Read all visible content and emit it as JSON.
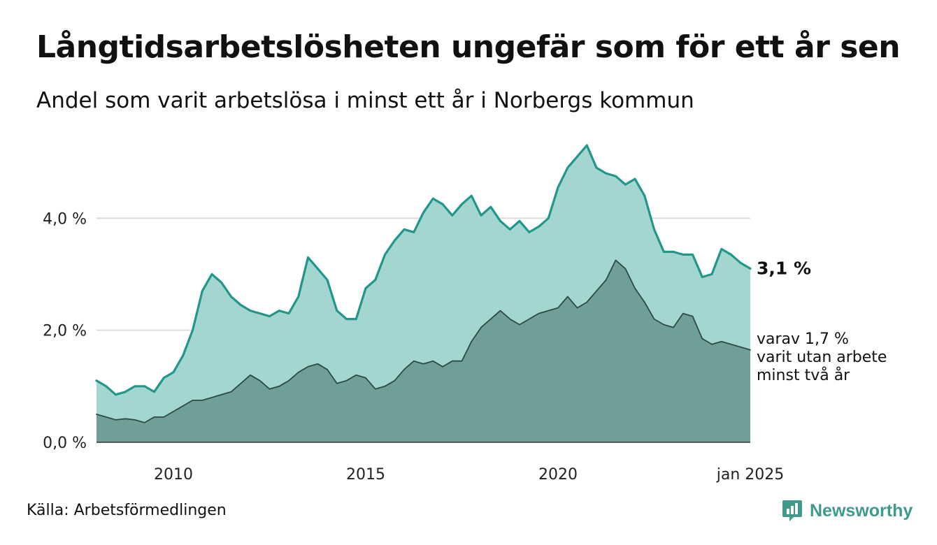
{
  "header": {
    "title": "Långtidsarbetslösheten ungefär som för ett år sen",
    "subtitle": "Andel som varit arbetslösa i minst ett år i Norbergs kommun"
  },
  "footer": {
    "source": "Källa: Arbetsförmedlingen",
    "brand": "Newsworthy"
  },
  "colors": {
    "series1_line": "#21978a",
    "series1_fill": "#a3d6d1",
    "series2_line": "#2f4a45",
    "series2_fill": "#6f9f98",
    "grid": "#dddddd",
    "brand": "#3f9a8c"
  },
  "chart_data": {
    "type": "area",
    "title": "Långtidsarbetslösheten ungefär som för ett år sen",
    "subtitle": "Andel som varit arbetslösa i minst ett år i Norbergs kommun",
    "xlabel": "",
    "ylabel": "",
    "x_start": "2008-01",
    "x_end": "2025-01",
    "x_ticks": [
      {
        "x": 2010.0,
        "label": "2010"
      },
      {
        "x": 2015.0,
        "label": "2015"
      },
      {
        "x": 2020.0,
        "label": "2020"
      },
      {
        "x": 2025.0,
        "label": "jan 2025"
      }
    ],
    "y_ticks": [
      {
        "y": 0,
        "label": "0,0 %"
      },
      {
        "y": 2,
        "label": "2,0 %"
      },
      {
        "y": 4,
        "label": "4,0 %"
      }
    ],
    "ylim": [
      0,
      5.4
    ],
    "grid": "horizontal",
    "series": [
      {
        "label": "3,1 %",
        "points": [
          [
            2008.0,
            1.1
          ],
          [
            2008.25,
            1.0
          ],
          [
            2008.5,
            0.85
          ],
          [
            2008.75,
            0.9
          ],
          [
            2009.0,
            1.0
          ],
          [
            2009.25,
            1.0
          ],
          [
            2009.5,
            0.9
          ],
          [
            2009.75,
            1.15
          ],
          [
            2010.0,
            1.25
          ],
          [
            2010.25,
            1.55
          ],
          [
            2010.5,
            2.0
          ],
          [
            2010.75,
            2.7
          ],
          [
            2011.0,
            3.0
          ],
          [
            2011.25,
            2.85
          ],
          [
            2011.5,
            2.6
          ],
          [
            2011.75,
            2.45
          ],
          [
            2012.0,
            2.35
          ],
          [
            2012.25,
            2.3
          ],
          [
            2012.5,
            2.25
          ],
          [
            2012.75,
            2.35
          ],
          [
            2013.0,
            2.3
          ],
          [
            2013.25,
            2.6
          ],
          [
            2013.5,
            3.3
          ],
          [
            2013.75,
            3.1
          ],
          [
            2014.0,
            2.9
          ],
          [
            2014.25,
            2.35
          ],
          [
            2014.5,
            2.2
          ],
          [
            2014.75,
            2.2
          ],
          [
            2015.0,
            2.75
          ],
          [
            2015.25,
            2.9
          ],
          [
            2015.5,
            3.35
          ],
          [
            2015.75,
            3.6
          ],
          [
            2016.0,
            3.8
          ],
          [
            2016.25,
            3.75
          ],
          [
            2016.5,
            4.1
          ],
          [
            2016.75,
            4.35
          ],
          [
            2017.0,
            4.25
          ],
          [
            2017.25,
            4.05
          ],
          [
            2017.5,
            4.25
          ],
          [
            2017.75,
            4.4
          ],
          [
            2018.0,
            4.05
          ],
          [
            2018.25,
            4.2
          ],
          [
            2018.5,
            3.95
          ],
          [
            2018.75,
            3.8
          ],
          [
            2019.0,
            3.95
          ],
          [
            2019.25,
            3.75
          ],
          [
            2019.5,
            3.85
          ],
          [
            2019.75,
            4.0
          ],
          [
            2020.0,
            4.55
          ],
          [
            2020.25,
            4.9
          ],
          [
            2020.5,
            5.1
          ],
          [
            2020.75,
            5.3
          ],
          [
            2021.0,
            4.9
          ],
          [
            2021.25,
            4.8
          ],
          [
            2021.5,
            4.75
          ],
          [
            2021.75,
            4.6
          ],
          [
            2022.0,
            4.7
          ],
          [
            2022.25,
            4.4
          ],
          [
            2022.5,
            3.8
          ],
          [
            2022.75,
            3.4
          ],
          [
            2023.0,
            3.4
          ],
          [
            2023.25,
            3.35
          ],
          [
            2023.5,
            3.35
          ],
          [
            2023.75,
            2.95
          ],
          [
            2024.0,
            3.0
          ],
          [
            2024.25,
            3.45
          ],
          [
            2024.5,
            3.35
          ],
          [
            2024.75,
            3.2
          ],
          [
            2025.0,
            3.1
          ]
        ]
      },
      {
        "label": "varav 1,7 %\nvarit utan arbete\nminst två år",
        "points": [
          [
            2008.0,
            0.5
          ],
          [
            2008.25,
            0.45
          ],
          [
            2008.5,
            0.4
          ],
          [
            2008.75,
            0.42
          ],
          [
            2009.0,
            0.4
          ],
          [
            2009.25,
            0.35
          ],
          [
            2009.5,
            0.45
          ],
          [
            2009.75,
            0.45
          ],
          [
            2010.0,
            0.55
          ],
          [
            2010.25,
            0.65
          ],
          [
            2010.5,
            0.75
          ],
          [
            2010.75,
            0.75
          ],
          [
            2011.0,
            0.8
          ],
          [
            2011.25,
            0.85
          ],
          [
            2011.5,
            0.9
          ],
          [
            2011.75,
            1.05
          ],
          [
            2012.0,
            1.2
          ],
          [
            2012.25,
            1.1
          ],
          [
            2012.5,
            0.95
          ],
          [
            2012.75,
            1.0
          ],
          [
            2013.0,
            1.1
          ],
          [
            2013.25,
            1.25
          ],
          [
            2013.5,
            1.35
          ],
          [
            2013.75,
            1.4
          ],
          [
            2014.0,
            1.3
          ],
          [
            2014.25,
            1.05
          ],
          [
            2014.5,
            1.1
          ],
          [
            2014.75,
            1.2
          ],
          [
            2015.0,
            1.15
          ],
          [
            2015.25,
            0.95
          ],
          [
            2015.5,
            1.0
          ],
          [
            2015.75,
            1.1
          ],
          [
            2016.0,
            1.3
          ],
          [
            2016.25,
            1.45
          ],
          [
            2016.5,
            1.4
          ],
          [
            2016.75,
            1.45
          ],
          [
            2017.0,
            1.35
          ],
          [
            2017.25,
            1.45
          ],
          [
            2017.5,
            1.45
          ],
          [
            2017.75,
            1.8
          ],
          [
            2018.0,
            2.05
          ],
          [
            2018.25,
            2.2
          ],
          [
            2018.5,
            2.35
          ],
          [
            2018.75,
            2.2
          ],
          [
            2019.0,
            2.1
          ],
          [
            2019.25,
            2.2
          ],
          [
            2019.5,
            2.3
          ],
          [
            2019.75,
            2.35
          ],
          [
            2020.0,
            2.4
          ],
          [
            2020.25,
            2.6
          ],
          [
            2020.5,
            2.4
          ],
          [
            2020.75,
            2.5
          ],
          [
            2021.0,
            2.7
          ],
          [
            2021.25,
            2.9
          ],
          [
            2021.5,
            3.25
          ],
          [
            2021.75,
            3.1
          ],
          [
            2022.0,
            2.75
          ],
          [
            2022.25,
            2.5
          ],
          [
            2022.5,
            2.2
          ],
          [
            2022.75,
            2.1
          ],
          [
            2023.0,
            2.05
          ],
          [
            2023.25,
            2.3
          ],
          [
            2023.5,
            2.25
          ],
          [
            2023.75,
            1.85
          ],
          [
            2024.0,
            1.75
          ],
          [
            2024.25,
            1.8
          ],
          [
            2024.5,
            1.75
          ],
          [
            2024.75,
            1.7
          ],
          [
            2025.0,
            1.65
          ]
        ]
      }
    ]
  }
}
